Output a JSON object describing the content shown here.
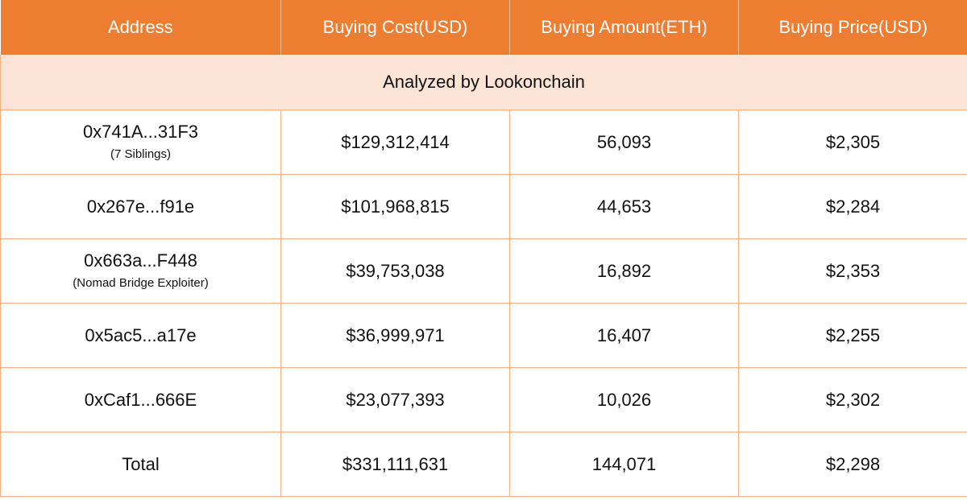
{
  "chart_data": {
    "type": "table",
    "columns": [
      "Address",
      "Buying Cost(USD)",
      "Buying Amount(ETH)",
      "Buying Price(USD)"
    ],
    "banner": "Analyzed by Lookonchain",
    "rows": [
      {
        "address": "0x741A...31F3",
        "note": "(7 Siblings)",
        "cost": "$129,312,414",
        "amount": "56,093",
        "price": "$2,305"
      },
      {
        "address": "0x267e...f91e",
        "note": "",
        "cost": "$101,968,815",
        "amount": "44,653",
        "price": "$2,284"
      },
      {
        "address": "0x663a...F448",
        "note": "(Nomad Bridge Exploiter)",
        "cost": "$39,753,038",
        "amount": "16,892",
        "price": "$2,353"
      },
      {
        "address": "0x5ac5...a17e",
        "note": "",
        "cost": "$36,999,971",
        "amount": "16,407",
        "price": "$2,255"
      },
      {
        "address": "0xCaf1...666E",
        "note": "",
        "cost": "$23,077,393",
        "amount": "10,026",
        "price": "$2,302"
      },
      {
        "address": "Total",
        "note": "",
        "cost": "$331,111,631",
        "amount": "144,071",
        "price": "$2,298"
      }
    ]
  },
  "colors": {
    "header_bg": "#ED7D31",
    "banner_bg": "#FBE4D6",
    "border": "#F4B183"
  }
}
